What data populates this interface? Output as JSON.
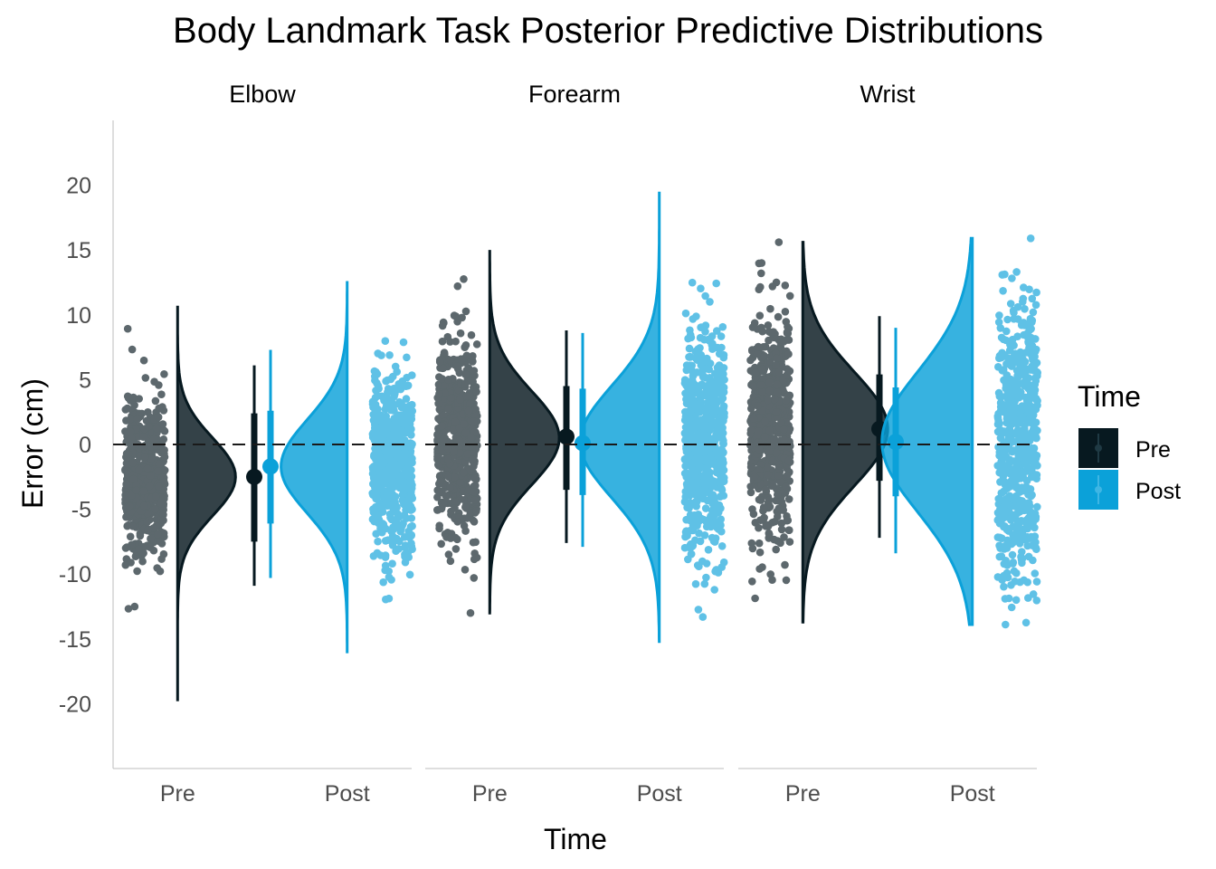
{
  "colors": {
    "pre": "#071920",
    "post": "#0ba1d9",
    "axis": "#bdbdbd",
    "ref": "#1a1a1a"
  },
  "chart_data": {
    "type": "raincloud",
    "title": "Body Landmark Task Posterior Predictive Distributions",
    "xlabel": "Time",
    "ylabel": "Error (cm)",
    "ylim": [
      -25,
      25
    ],
    "yticks": [
      20,
      15,
      10,
      5,
      0,
      -5,
      -10,
      -15,
      -20
    ],
    "ytick_labels": [
      "20",
      "15",
      "10",
      "5",
      "0",
      "-5",
      "-10",
      "-15",
      "-20"
    ],
    "categories": [
      "Pre",
      "Post"
    ],
    "reference_line": 0,
    "legend": {
      "title": "Time",
      "entries": [
        "Pre",
        "Post"
      ],
      "placement": "right"
    },
    "facets": [
      {
        "name": "Elbow",
        "series": [
          {
            "name": "Pre",
            "mean": -2.5,
            "sd": 3.0,
            "center": -2.5,
            "inner": [
              -7.5,
              2.4
            ],
            "outer": [
              -10.9,
              6.1
            ],
            "range": [
              -19.7,
              10.6
            ]
          },
          {
            "name": "Post",
            "mean": -1.7,
            "sd": 3.6,
            "center": -1.7,
            "inner": [
              -6.1,
              2.6
            ],
            "outer": [
              -10.3,
              7.3
            ],
            "range": [
              -16.0,
              12.5
            ]
          }
        ]
      },
      {
        "name": "Forearm",
        "series": [
          {
            "name": "Pre",
            "mean": 0.5,
            "sd": 3.6,
            "center": 0.6,
            "inner": [
              -3.5,
              4.5
            ],
            "outer": [
              -7.6,
              8.8
            ],
            "range": [
              -13.0,
              14.9
            ]
          },
          {
            "name": "Post",
            "mean": 0.2,
            "sd": 4.3,
            "center": 0.1,
            "inner": [
              -3.9,
              4.3
            ],
            "outer": [
              -7.9,
              8.6
            ],
            "range": [
              -15.2,
              19.4
            ]
          }
        ]
      },
      {
        "name": "Wrist",
        "series": [
          {
            "name": "Pre",
            "mean": 1.2,
            "sd": 4.4,
            "center": 1.2,
            "inner": [
              -2.8,
              5.4
            ],
            "outer": [
              -7.2,
              9.9
            ],
            "range": [
              -13.7,
              15.6
            ]
          },
          {
            "name": "Post",
            "mean": 0.2,
            "sd": 5.4,
            "center": 0.2,
            "inner": [
              -4.0,
              4.4
            ],
            "outer": [
              -8.4,
              9.0
            ],
            "range": [
              -13.9,
              15.9
            ]
          }
        ]
      }
    ]
  }
}
